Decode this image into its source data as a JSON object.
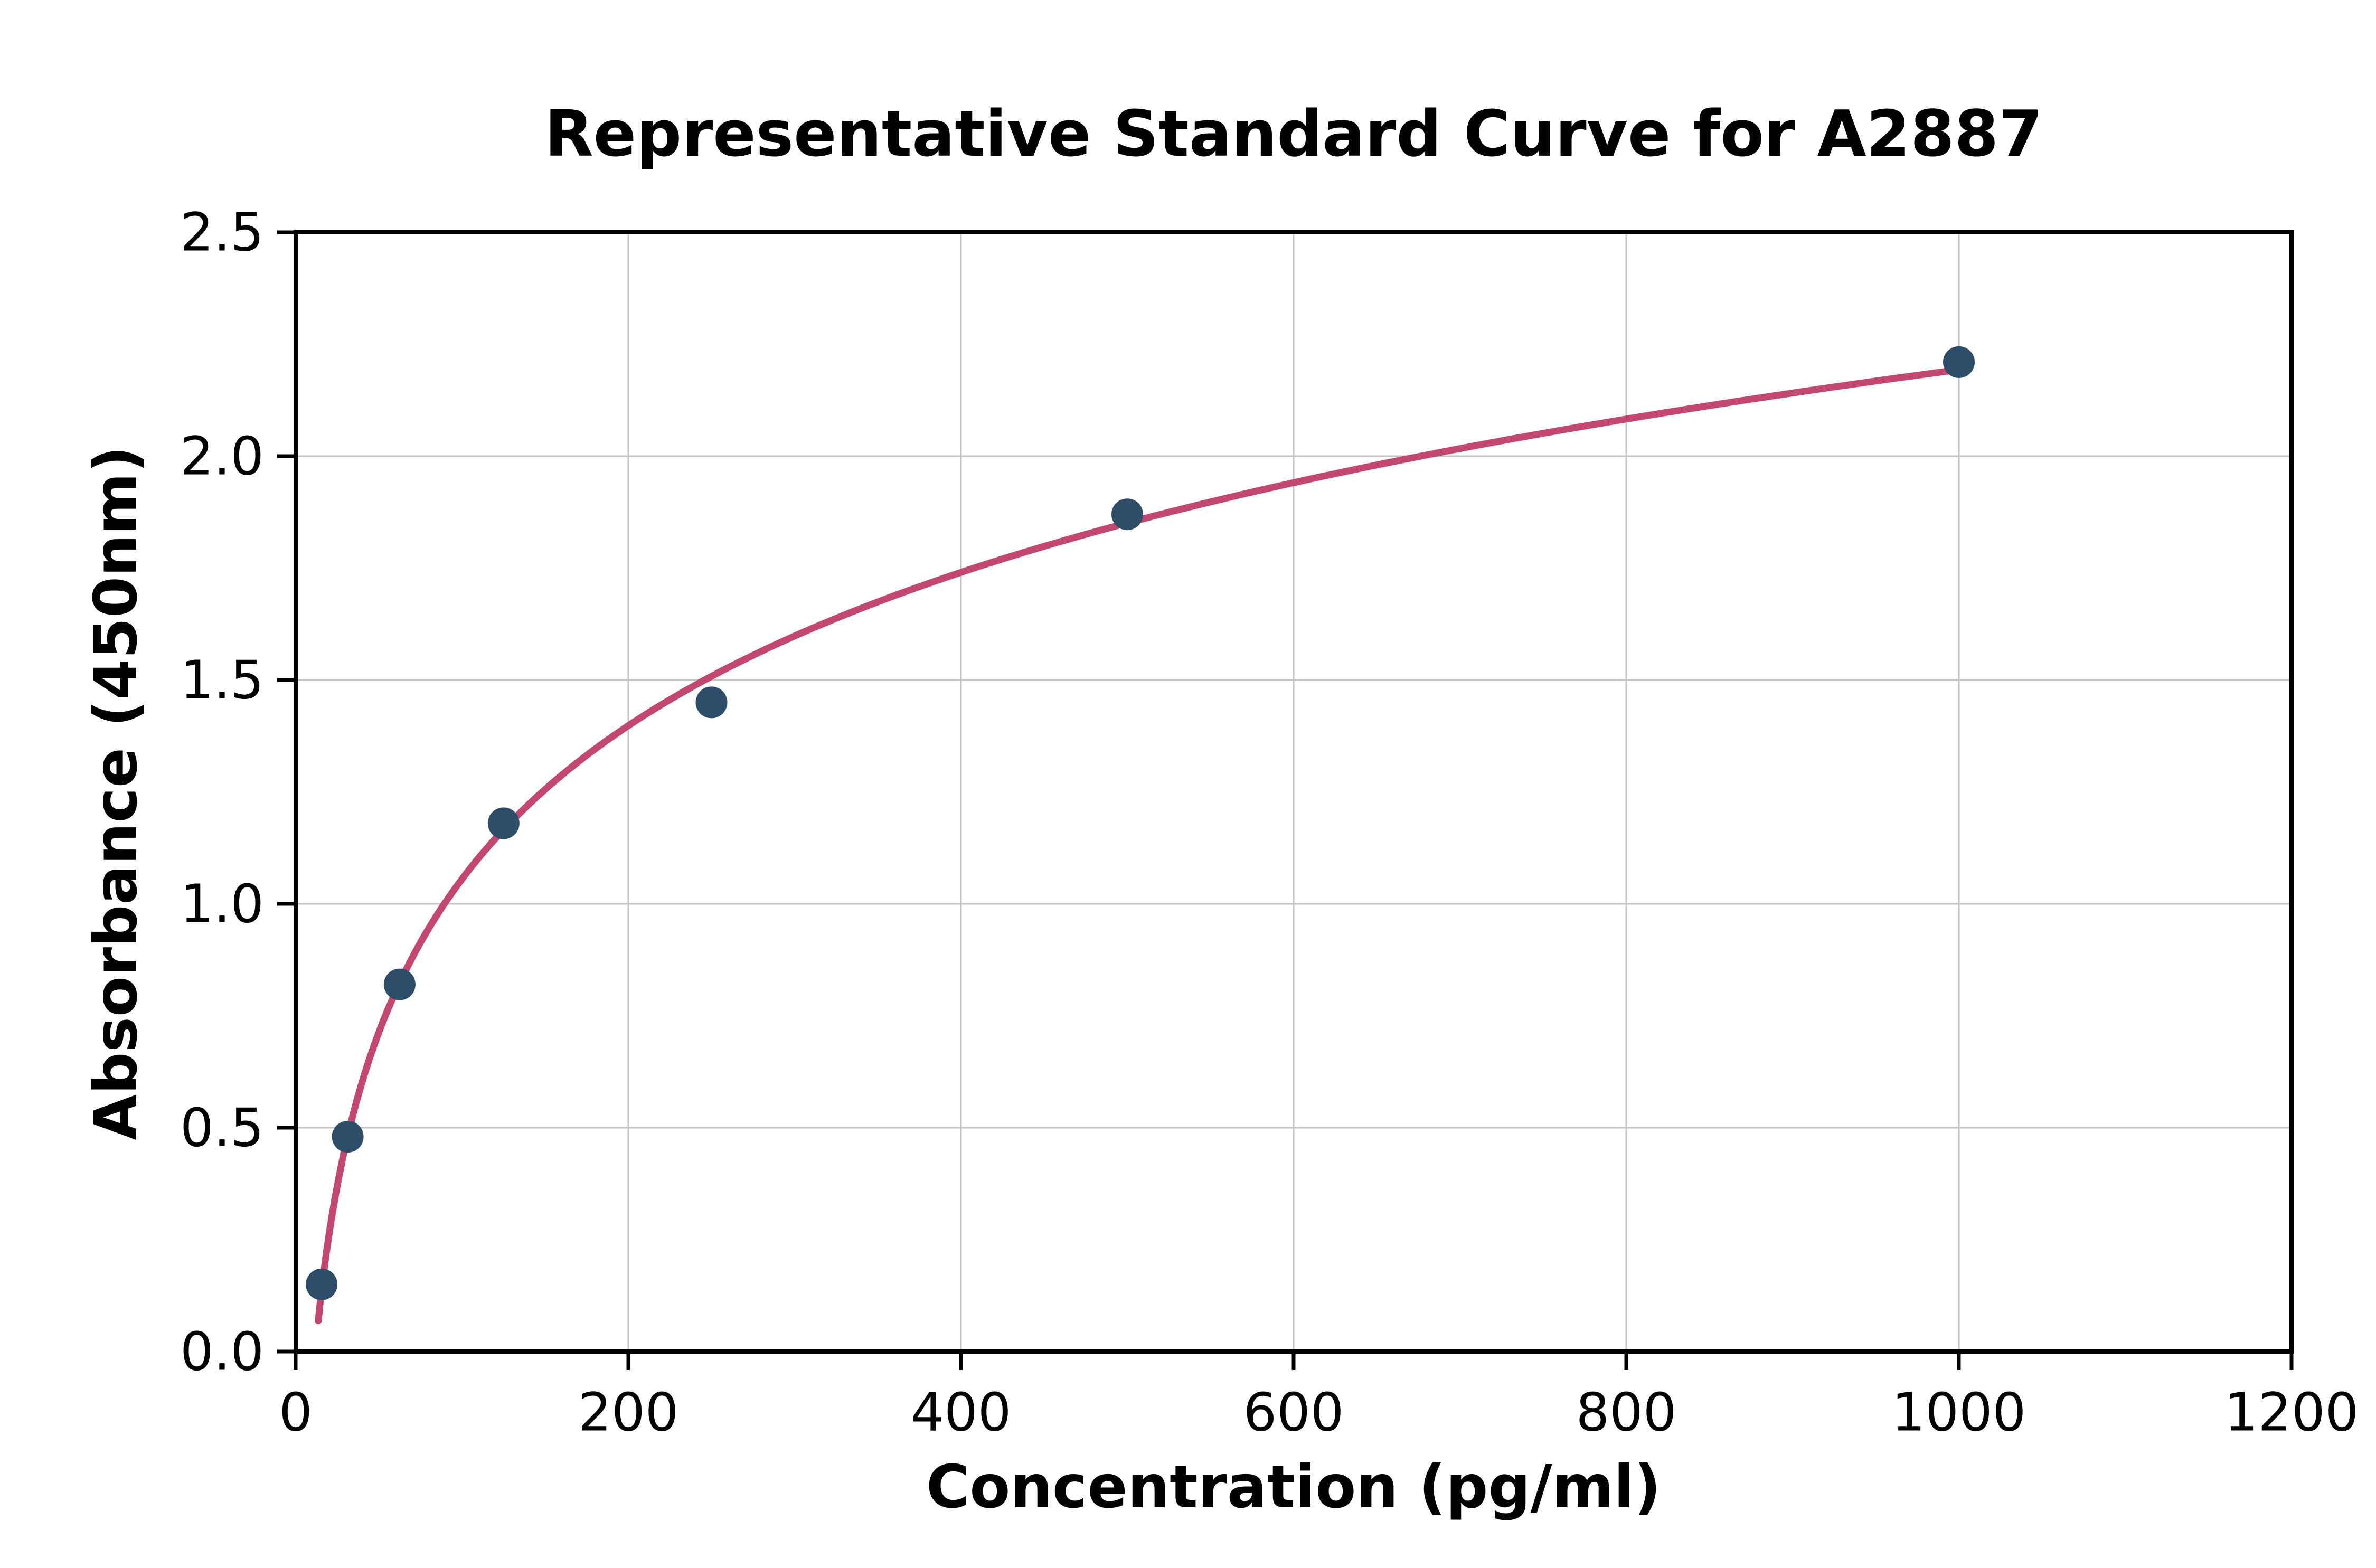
{
  "figure": {
    "background_color": "#ffffff",
    "grid_color": "#c3c3c3",
    "spine_color": "#000000"
  },
  "chart_data": {
    "type": "scatter",
    "title": "Representative Standard Curve for A2887",
    "xlabel": "Concentration (pg/ml)",
    "ylabel": "Absorbance (450nm)",
    "x": [
      15.6,
      31.3,
      62.5,
      125,
      250,
      500,
      1000
    ],
    "y": [
      0.15,
      0.48,
      0.82,
      1.18,
      1.45,
      1.87,
      2.21
    ],
    "xlim": [
      0,
      1200
    ],
    "ylim": [
      0,
      2.5
    ],
    "x_ticks": [
      0,
      200,
      400,
      600,
      800,
      1000,
      1200
    ],
    "x_tick_labels": [
      "0",
      "200",
      "400",
      "600",
      "800",
      "1000",
      "1200"
    ],
    "y_ticks": [
      0,
      0.5,
      1.0,
      1.5,
      2.0,
      2.5
    ],
    "y_tick_labels": [
      "0.0",
      "0.5",
      "1.0",
      "1.5",
      "2.0",
      "2.5"
    ],
    "grid": true,
    "legend": "none",
    "curve_fit": "logarithmic",
    "marker_color": "#2e4d68",
    "curve_color": "#c2486f"
  }
}
